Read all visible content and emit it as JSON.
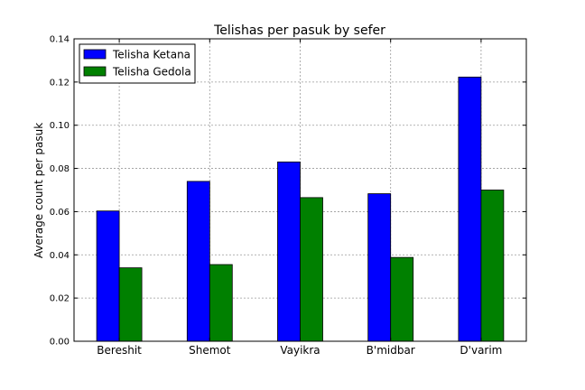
{
  "chart_data": {
    "type": "bar",
    "title": "Telishas per pasuk by sefer",
    "xlabel": "",
    "ylabel": "Average count per pasuk",
    "categories": [
      "Bereshit",
      "Shemot",
      "Vayikra",
      "B'midbar",
      "D'varim"
    ],
    "series": [
      {
        "name": "Telisha Ketana",
        "color": "#0000ff",
        "values": [
          0.0603,
          0.074,
          0.083,
          0.0683,
          0.1223
        ]
      },
      {
        "name": "Telisha Gedola",
        "color": "#008000",
        "values": [
          0.034,
          0.0355,
          0.0665,
          0.0388,
          0.07
        ]
      }
    ],
    "ylim": [
      0,
      0.14
    ],
    "yticks": [
      "0.00",
      "0.02",
      "0.04",
      "0.06",
      "0.08",
      "0.10",
      "0.12",
      "0.14"
    ],
    "grid": true,
    "legend": "top-left"
  }
}
